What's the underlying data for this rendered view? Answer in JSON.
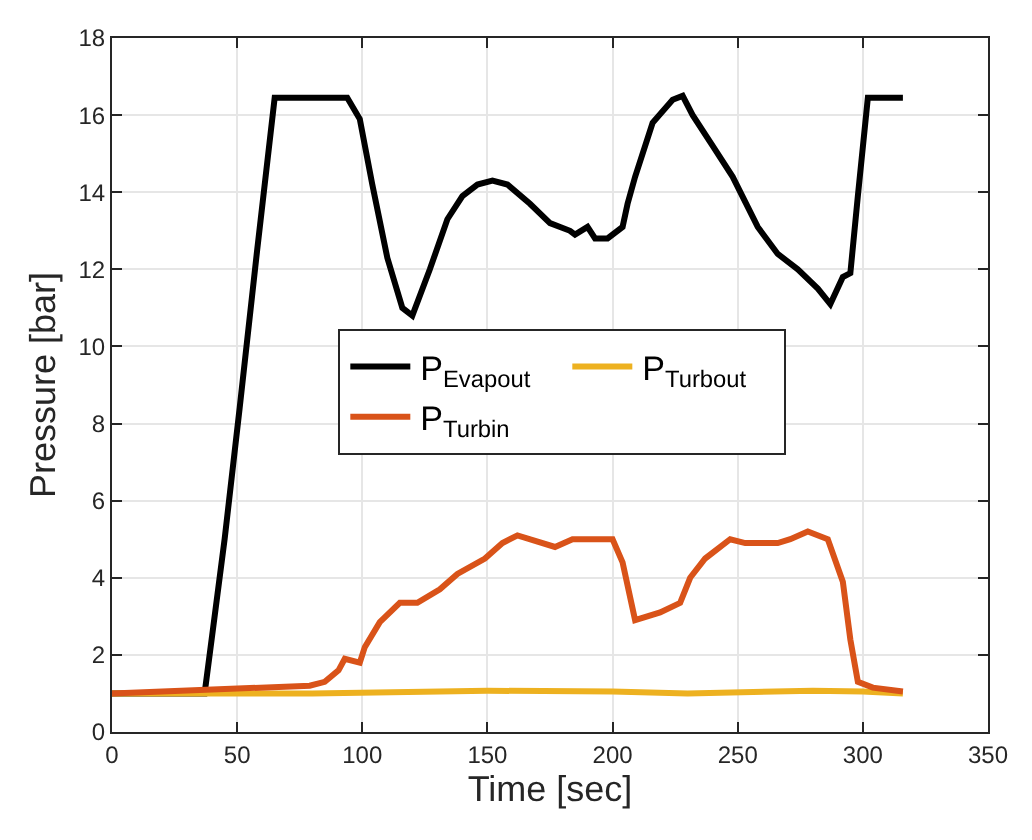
{
  "chart_data": {
    "type": "line",
    "xlabel": "Time [sec]",
    "ylabel": "Pressure [bar]",
    "xlim": [
      0,
      350
    ],
    "xticks": [
      0,
      50,
      100,
      150,
      200,
      250,
      300,
      350
    ],
    "ylim": [
      0,
      18
    ],
    "yticks": [
      0,
      2,
      4,
      6,
      8,
      10,
      12,
      14,
      16,
      18
    ],
    "grid": true,
    "legend": "right",
    "line_style": "solid",
    "marker": "none",
    "series": [
      {
        "name": "P$_{Evap}$$_{out}$",
        "color": "#000000",
        "x": [
          0,
          37,
          40,
          45,
          51,
          58,
          65,
          94,
          99,
          104,
          110,
          116,
          120,
          127,
          134,
          140,
          146,
          152,
          158,
          167,
          175,
          183,
          185,
          190,
          193,
          198,
          204,
          206,
          209,
          216,
          224,
          228,
          232,
          240,
          248,
          258,
          266,
          274,
          282,
          287,
          292,
          295,
          298,
          302,
          316
        ],
        "values": [
          1.0,
          1.0,
          2.5,
          5.0,
          8.4,
          12.5,
          16.45,
          16.45,
          15.9,
          14.2,
          12.3,
          11.0,
          10.8,
          12.0,
          13.3,
          13.9,
          14.2,
          14.3,
          14.2,
          13.7,
          13.2,
          13.0,
          12.9,
          13.1,
          12.8,
          12.8,
          13.1,
          13.7,
          14.4,
          15.8,
          16.4,
          16.5,
          16.0,
          15.2,
          14.4,
          13.1,
          12.4,
          12.0,
          11.5,
          11.1,
          11.8,
          11.9,
          13.9,
          16.45,
          16.45
        ]
      },
      {
        "name": "P$_{Turb}$$_{out}$",
        "color": "#edb120",
        "x": [
          0,
          80,
          150,
          200,
          230,
          280,
          300,
          316
        ],
        "values": [
          1.0,
          1.0,
          1.07,
          1.05,
          1.0,
          1.07,
          1.05,
          1.0
        ]
      },
      {
        "name": "P$_{Turb}$$_{in}$",
        "color": "#d95319",
        "x": [
          0,
          79,
          85,
          90.5,
          93,
          99,
          101,
          107,
          115,
          122,
          131,
          138,
          149,
          156,
          162,
          177,
          184,
          200,
          204,
          209,
          219,
          227,
          231,
          237,
          247,
          253,
          266,
          271,
          278,
          286,
          292,
          295,
          298,
          304,
          316
        ],
        "values": [
          1.0,
          1.2,
          1.3,
          1.6,
          1.9,
          1.8,
          2.2,
          2.85,
          3.35,
          3.35,
          3.7,
          4.1,
          4.5,
          4.9,
          5.1,
          4.8,
          5.0,
          5.0,
          4.4,
          2.9,
          3.1,
          3.35,
          4.0,
          4.5,
          5.0,
          4.9,
          4.9,
          5.0,
          5.2,
          5.0,
          3.9,
          2.4,
          1.3,
          1.15,
          1.05
        ]
      }
    ]
  }
}
